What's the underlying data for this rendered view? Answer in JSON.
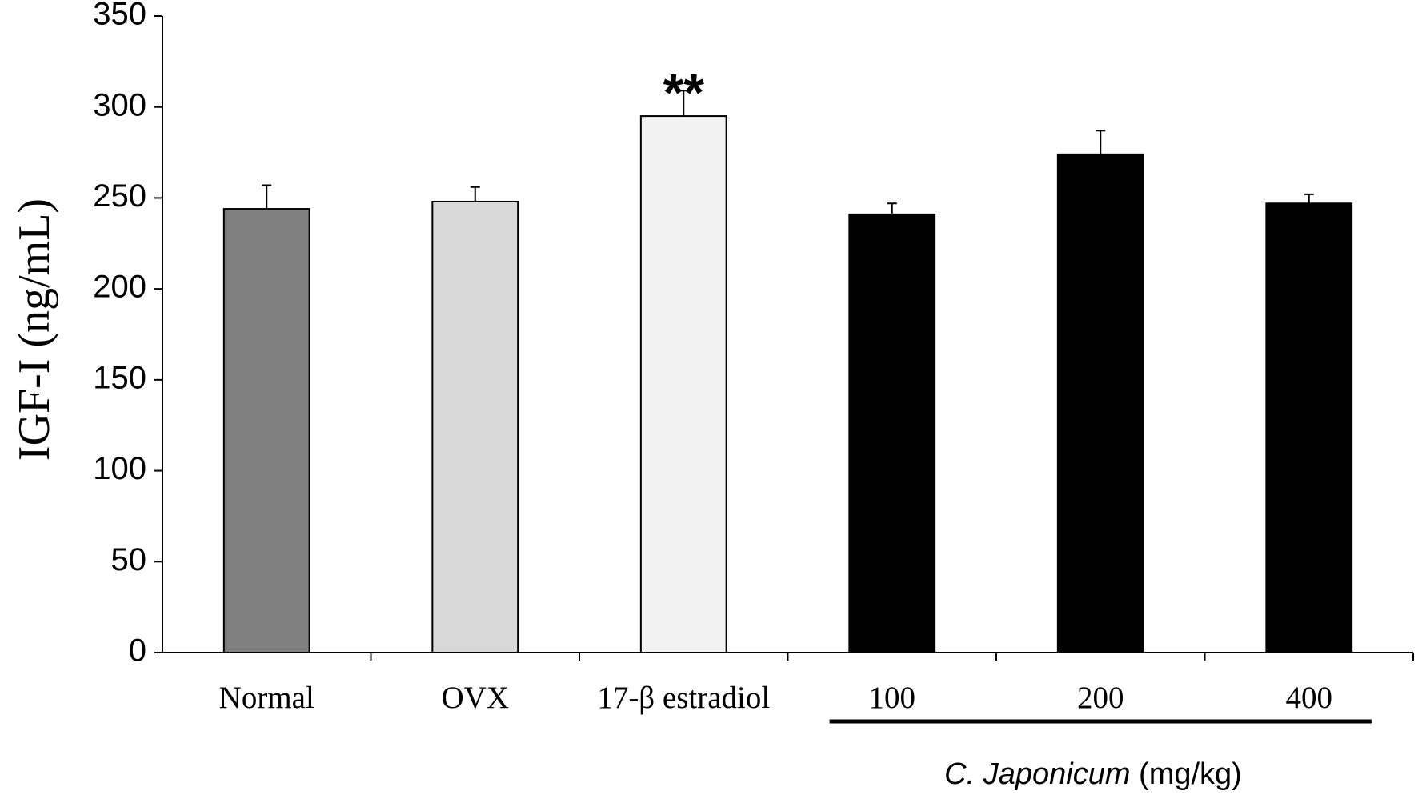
{
  "chart_data": {
    "type": "bar",
    "y_axis_label": "IGF-I (ng/mL)",
    "categories": [
      "Normal",
      "OVX",
      "17-β estradiol",
      "100",
      "200",
      "400"
    ],
    "values": [
      244,
      248,
      295,
      241,
      274,
      247
    ],
    "errors": [
      13,
      8,
      14,
      6,
      13,
      5
    ],
    "colors": [
      "#808080",
      "#d9d9d9",
      "#f2f2f2",
      "#000000",
      "#000000",
      "#000000"
    ],
    "annotation": "**",
    "group_name": "C. Japonicum",
    "group_unit": "(mg/kg)",
    "ylim": [
      0,
      350
    ],
    "yticks": [
      0,
      50,
      100,
      150,
      200,
      250,
      300,
      350
    ],
    "grid": false
  }
}
